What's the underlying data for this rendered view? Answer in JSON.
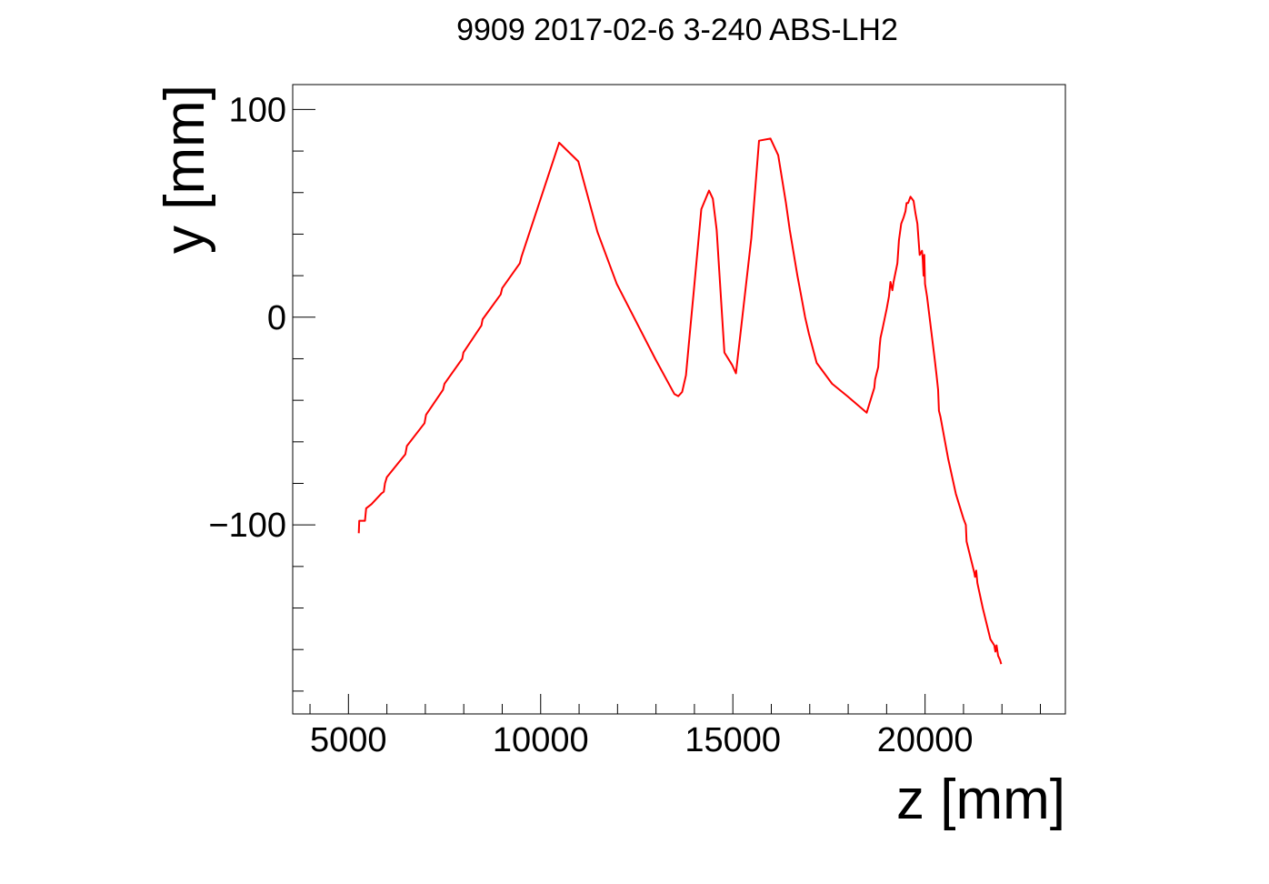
{
  "chart_data": {
    "type": "line",
    "title": "9909 2017-02-6 3-240 ABS-LH2",
    "xlabel": "z [mm]",
    "ylabel": "y [mm]",
    "xlim": [
      3550,
      23650
    ],
    "ylim": [
      -191,
      112
    ],
    "xticks": [
      5000,
      10000,
      15000,
      20000
    ],
    "xtick_labels": [
      "5000",
      "10000",
      "15000",
      "20000"
    ],
    "yticks": [
      -100,
      0,
      100
    ],
    "ytick_labels": [
      "−100",
      "0",
      "100"
    ],
    "grid": false,
    "legend": "none",
    "series": [
      {
        "color": "#ff0000",
        "x": [
          5270,
          5280,
          5300,
          5430,
          5460,
          5600,
          5850,
          5920,
          5950,
          6000,
          6480,
          6520,
          6980,
          7020,
          7460,
          7500,
          7960,
          7990,
          8460,
          8490,
          8960,
          9000,
          9460,
          9500,
          10480,
          10980,
          11480,
          11980,
          12980,
          13480,
          13580,
          13680,
          13780,
          13880,
          13980,
          14180,
          14380,
          14480,
          14580,
          14780,
          14980,
          15080,
          15480,
          15680,
          15980,
          16180,
          16380,
          16480,
          16680,
          16780,
          16880,
          16980,
          17180,
          17580,
          17980,
          18480,
          18680,
          18700,
          18780,
          18820,
          18840,
          18900,
          19000,
          19060,
          19100,
          19150,
          19180,
          19280,
          19320,
          19380,
          19440,
          19490,
          19520,
          19560,
          19620,
          19700,
          19750,
          19800,
          19860,
          19920,
          19940,
          19960,
          19980,
          20000,
          20050,
          20150,
          20250,
          20300,
          20340,
          20360,
          20400,
          20500,
          20600,
          20800,
          21000,
          21060,
          21080,
          21200,
          21280,
          21300,
          21330,
          21360,
          21500,
          21700,
          21800,
          21830,
          21860,
          21900,
          21950,
          21980
        ],
        "y": [
          -104,
          -98,
          -98,
          -98,
          -92,
          -90,
          -85,
          -84,
          -80,
          -77,
          -66,
          -62,
          -51,
          -47,
          -35,
          -32,
          -20,
          -17,
          -4,
          -1,
          11,
          14,
          26,
          29,
          84,
          75,
          41,
          16,
          -20,
          -37,
          -38,
          -36,
          -28,
          -8,
          12,
          52,
          61,
          57,
          42,
          -17,
          -23,
          -27,
          38,
          85,
          86,
          78,
          55,
          42,
          20,
          10,
          0,
          -8,
          -22,
          -32,
          -38,
          -46,
          -34,
          -30,
          -24,
          -14,
          -10,
          -5,
          4,
          10,
          17,
          13,
          17,
          26,
          37,
          45,
          48,
          51,
          55,
          55,
          58,
          56,
          50,
          45,
          30,
          32,
          28,
          20,
          30,
          16,
          10,
          -5,
          -20,
          -28,
          -35,
          -45,
          -48,
          -58,
          -68,
          -85,
          -97,
          -100,
          -108,
          -117,
          -123,
          -125,
          -122,
          -128,
          -140,
          -155,
          -158,
          -161,
          -158,
          -163,
          -165,
          -167
        ]
      }
    ]
  }
}
